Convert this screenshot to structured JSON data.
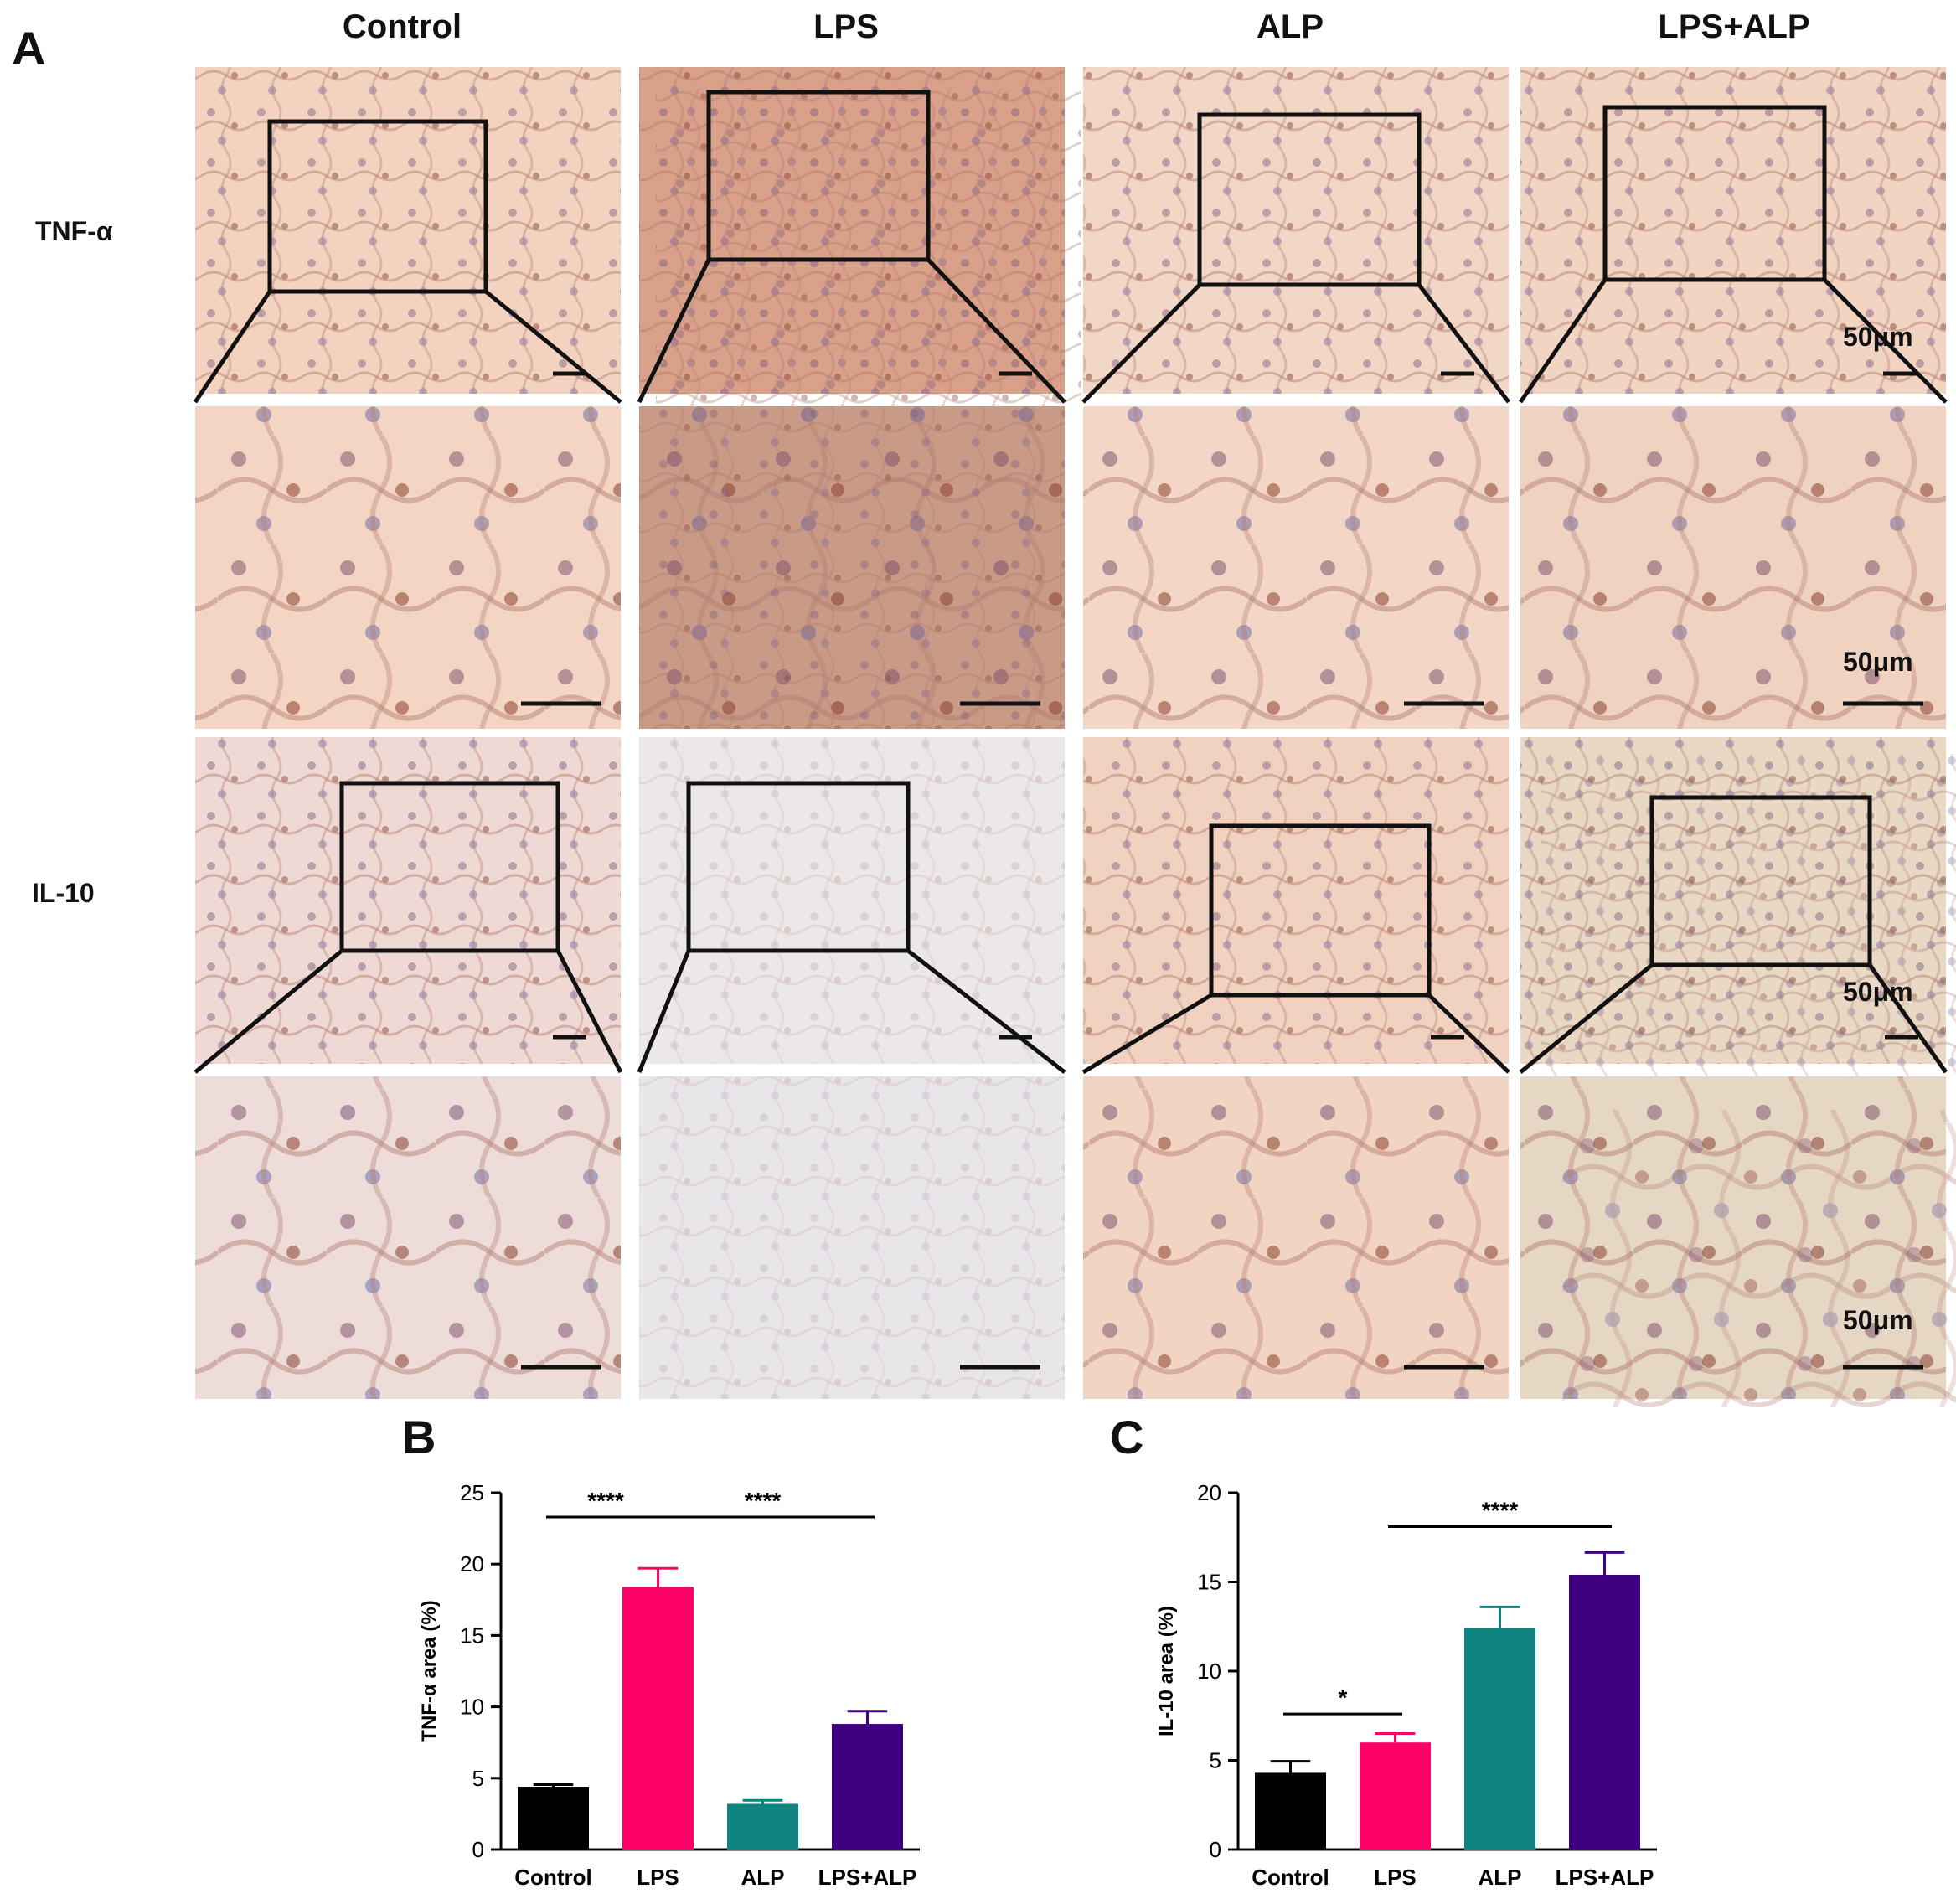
{
  "panel_a": {
    "letter": "A",
    "columns": [
      "Control",
      "LPS",
      "ALP",
      "LPS+ALP"
    ],
    "rows": [
      "TNF-α",
      "IL-10"
    ],
    "scale_bar": "50μm",
    "colors": {
      "tnf_control": "#f3d3c0",
      "tnf_lps": "#d9a08a",
      "tnf_alp": "#f2d6c6",
      "tnf_lpsalp": "#f1d4c2",
      "il10_control": "#efd9d4",
      "il10_lps": "#ece8ea",
      "il10_alp": "#f1d2c1",
      "il10_lpsalp": "#e8d8c4"
    }
  },
  "chart_data": [
    {
      "panel": "B",
      "type": "bar",
      "categories": [
        "Control",
        "LPS",
        "ALP",
        "LPS+ALP"
      ],
      "values": [
        4.4,
        18.4,
        3.2,
        8.8
      ],
      "errors": [
        0.15,
        1.3,
        0.25,
        0.9
      ],
      "colors": [
        "#000000",
        "#ff0066",
        "#0e8380",
        "#3f0080"
      ],
      "ylabel": "TNF-α area (%)",
      "ylim": [
        0,
        25
      ],
      "yticks": [
        0,
        5,
        10,
        15,
        20,
        25
      ],
      "significance": [
        {
          "from": 0,
          "to": 1,
          "label": "****",
          "y": 23.3
        },
        {
          "from": 1,
          "to": 3,
          "label": "****",
          "y": 23.3
        }
      ]
    },
    {
      "panel": "C",
      "type": "bar",
      "categories": [
        "Control",
        "LPS",
        "ALP",
        "LPS+ALP"
      ],
      "values": [
        4.3,
        6.0,
        12.4,
        15.4
      ],
      "errors": [
        0.65,
        0.5,
        1.2,
        1.25
      ],
      "colors": [
        "#000000",
        "#ff0066",
        "#0e8380",
        "#3f0080"
      ],
      "ylabel": "IL-10 area (%)",
      "ylim": [
        0,
        20
      ],
      "yticks": [
        0,
        5,
        10,
        15,
        20
      ],
      "significance": [
        {
          "from": 0,
          "to": 1,
          "label": "*",
          "y": 7.6
        },
        {
          "from": 1,
          "to": 3,
          "label": "****",
          "y": 18.1
        }
      ]
    }
  ]
}
